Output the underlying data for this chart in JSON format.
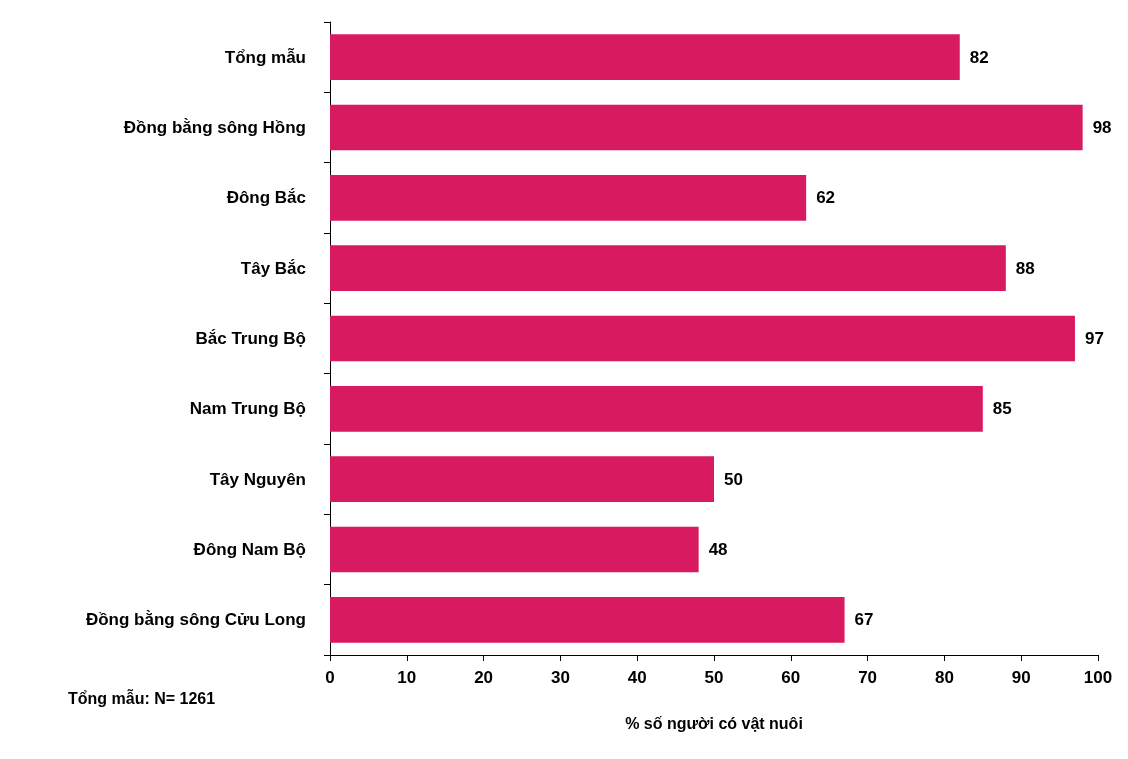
{
  "chart_data": {
    "type": "bar",
    "orientation": "horizontal",
    "xlabel": "% số người có vật nuôi",
    "categories": [
      "Tổng mẫu",
      "Đồng bằng sông Hồng",
      "Đông Bắc",
      "Tây Bắc",
      "Bắc Trung Bộ",
      "Nam Trung Bộ",
      "Tây Nguyên",
      "Đông Nam Bộ",
      "Đồng bằng sông Cửu Long"
    ],
    "values": [
      82,
      98,
      62,
      88,
      97,
      85,
      50,
      48,
      67
    ],
    "color": "#d81b60",
    "xlim": [
      0,
      100
    ],
    "xticks": [
      0,
      10,
      20,
      30,
      40,
      50,
      60,
      70,
      80,
      90,
      100
    ],
    "data_labels": true,
    "grid": false,
    "annotations": [
      "Tổng mẫu: N= 1261"
    ]
  }
}
